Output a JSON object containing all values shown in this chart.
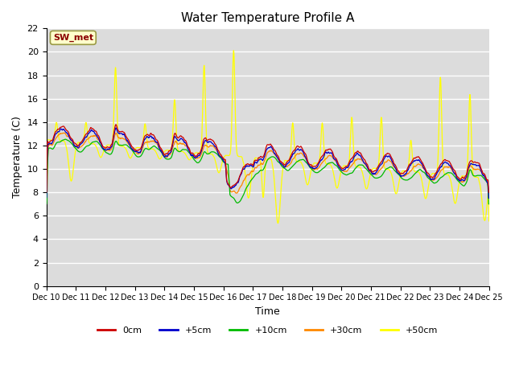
{
  "title": "Water Temperature Profile A",
  "xlabel": "Time",
  "ylabel": "Temperature (C)",
  "annotation": "SW_met",
  "ylim": [
    0,
    22
  ],
  "colors": {
    "0cm": "#cc0000",
    "5cm": "#0000cc",
    "10cm": "#00bb00",
    "30cm": "#ff8800",
    "50cm": "#ffff00"
  },
  "legend_labels": [
    "0cm",
    "+5cm",
    "+10cm",
    "+30cm",
    "+50cm"
  ],
  "legend_colors": [
    "#cc0000",
    "#0000cc",
    "#00bb00",
    "#ff8800",
    "#ffff00"
  ],
  "plot_bg": "#dcdcdc",
  "grid_color": "#ffffff",
  "tick_fontsize": 7,
  "title_fontsize": 11
}
